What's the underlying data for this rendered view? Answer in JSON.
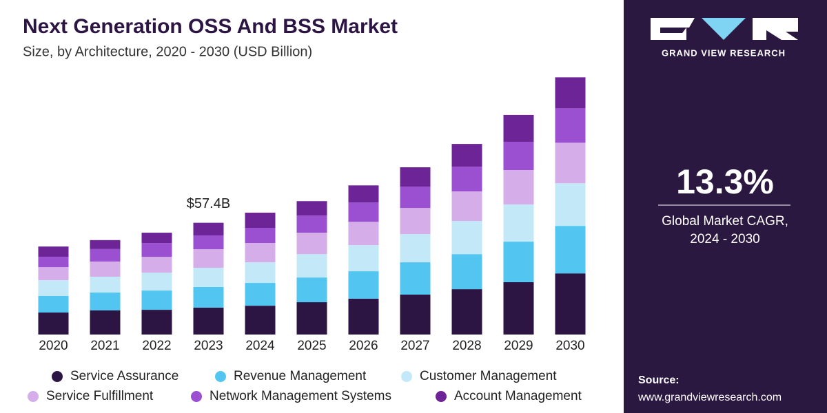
{
  "chart_data": {
    "type": "stacked_bar",
    "title": "Next Generation OSS And BSS Market",
    "subtitle": "Size, by Architecture, 2020 - 2030 (USD Billion)",
    "categories": [
      "2020",
      "2021",
      "2022",
      "2023",
      "2024",
      "2025",
      "2026",
      "2027",
      "2028",
      "2029",
      "2030"
    ],
    "series": [
      {
        "name": "Service Assurance",
        "color": "#2d1543",
        "values": [
          11.3,
          12.4,
          12.7,
          13.8,
          14.8,
          16.6,
          18.4,
          20.5,
          23.3,
          26.9,
          31.4
        ]
      },
      {
        "name": "Revenue Management",
        "color": "#52c5f0",
        "values": [
          8.5,
          9.2,
          9.9,
          10.6,
          11.7,
          12.7,
          14.1,
          16.6,
          18.0,
          20.8,
          24.4
        ]
      },
      {
        "name": "Customer Management",
        "color": "#c3e9f8",
        "values": [
          8.1,
          8.1,
          9.2,
          9.9,
          10.6,
          12.0,
          13.4,
          14.5,
          17.0,
          19.1,
          21.9
        ]
      },
      {
        "name": "Service Fulfillment",
        "color": "#d5aee9",
        "values": [
          6.7,
          7.8,
          8.1,
          9.5,
          9.9,
          11.0,
          12.0,
          13.4,
          15.2,
          17.7,
          20.8
        ]
      },
      {
        "name": "Network Management Systems",
        "color": "#9b4fd1",
        "values": [
          5.3,
          6.4,
          7.1,
          7.1,
          7.8,
          8.8,
          9.9,
          11.0,
          12.7,
          14.5,
          17.7
        ]
      },
      {
        "name": "Account Management",
        "color": "#6c2496",
        "values": [
          5.3,
          4.6,
          5.3,
          6.5,
          7.8,
          7.4,
          8.8,
          9.9,
          11.7,
          13.8,
          15.9
        ]
      }
    ],
    "ylim": [
      0,
      140
    ],
    "annotations": [
      {
        "x": "2023",
        "value": 57.4,
        "label": "$57.4B"
      }
    ],
    "legend": "bottom"
  },
  "sidebar": {
    "brand": "GRAND VIEW RESEARCH",
    "cagr": "13.3%",
    "cagr_label_1": "Global Market CAGR,",
    "cagr_label_2": "2024 - 2030",
    "source_label": "Source:",
    "source_url": "www.grandviewresearch.com"
  }
}
